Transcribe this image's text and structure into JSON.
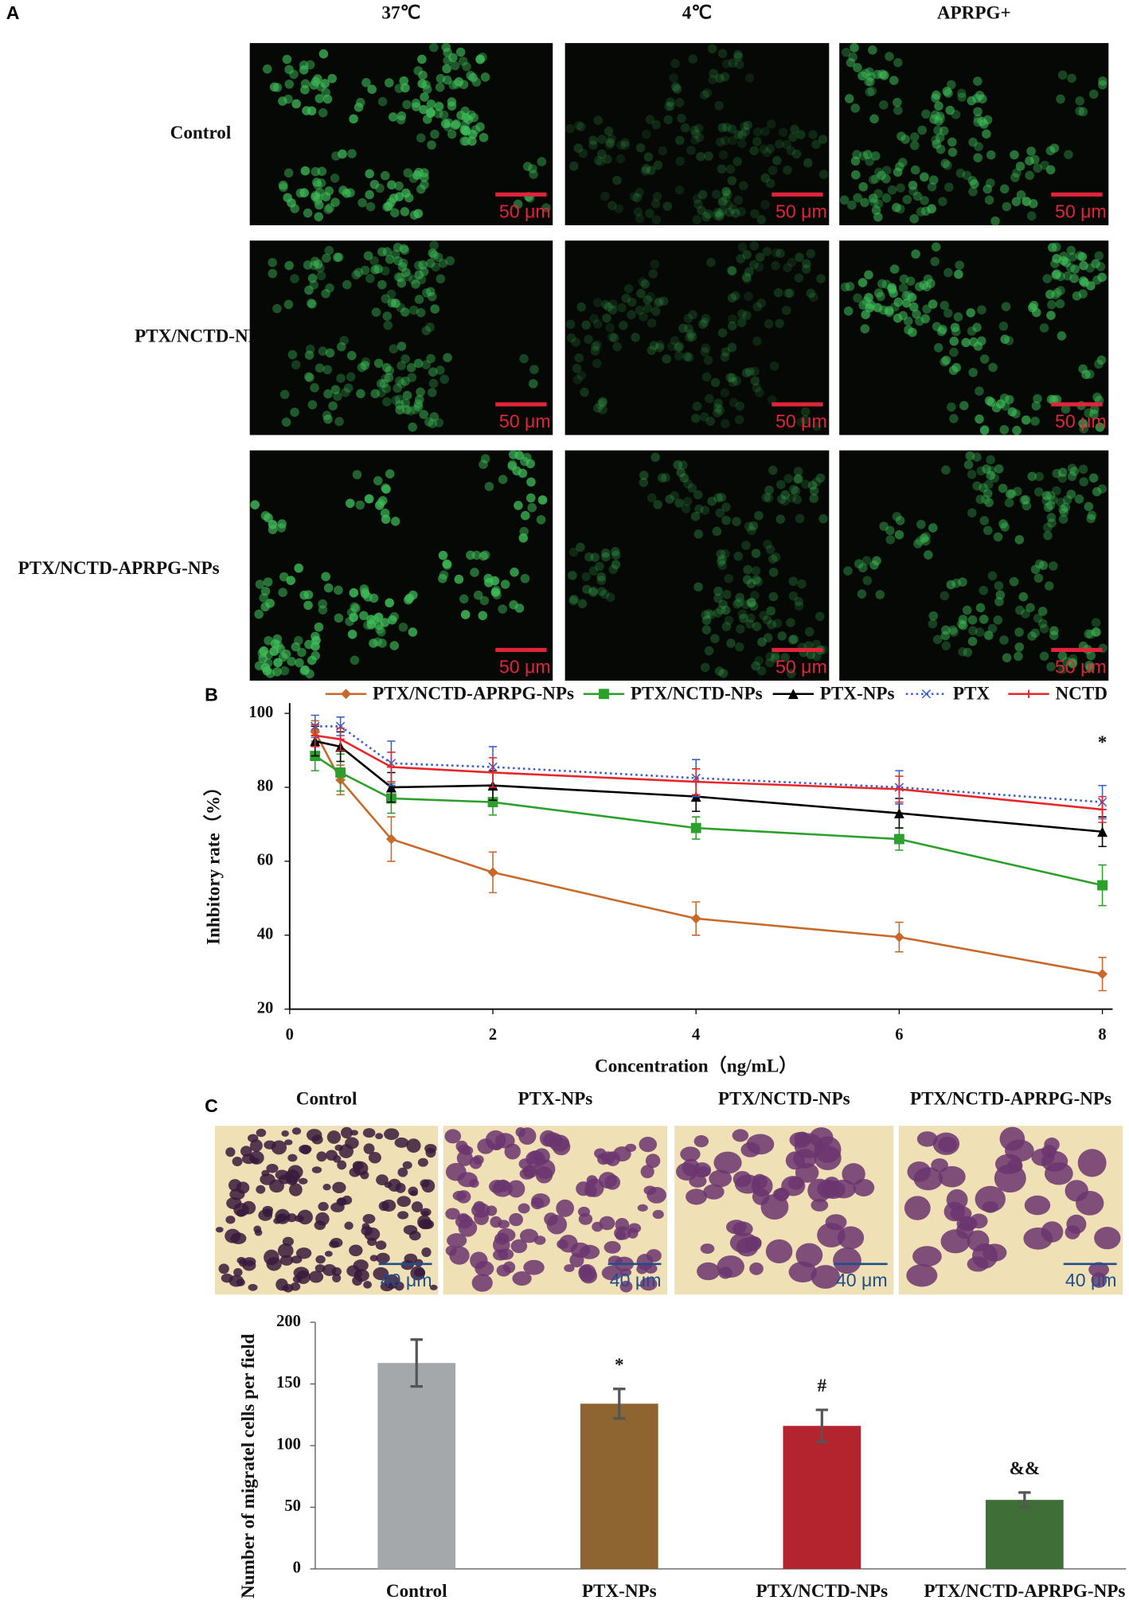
{
  "panel_a": {
    "label": "A",
    "columns": [
      "37℃",
      "4℃",
      "APRPG+"
    ],
    "rows": [
      "Control",
      "PTX/NCTD-NPs",
      "PTX/NCTD-APRPG-NPs"
    ],
    "scale_bar": "50 μm"
  },
  "panel_b": {
    "label": "B"
  },
  "panel_c": {
    "label": "C",
    "columns": [
      "Control",
      "PTX-NPs",
      "PTX/NCTD-NPs",
      "PTX/NCTD-APRPG-NPs"
    ],
    "scale_bar": "40 μm"
  },
  "chart_data": [
    {
      "type": "line",
      "y_label": "Inhbitory rate（%）",
      "x_label": "Concentration（ng/mL）",
      "x": [
        0.25,
        0.5,
        1,
        2,
        4,
        6,
        8
      ],
      "xlim": [
        0,
        8
      ],
      "xticks": [
        0,
        2,
        4,
        6,
        8
      ],
      "ylim": [
        20,
        100
      ],
      "yticks": [
        20,
        40,
        60,
        80,
        100
      ],
      "annotation": "*",
      "series": [
        {
          "name": "PTX/NCTD-APRPG-NPs",
          "color": "#c8692a",
          "marker": "diamond",
          "style": "solid",
          "values": [
            95,
            82,
            66,
            57,
            44.5,
            39.5,
            29.5
          ],
          "errors": [
            3,
            4,
            6,
            5.5,
            4.5,
            4,
            4.5
          ]
        },
        {
          "name": "PTX/NCTD-NPs",
          "color": "#2ca02c",
          "marker": "square",
          "style": "solid",
          "values": [
            88.5,
            84,
            77,
            76,
            69,
            66,
            53.5
          ],
          "errors": [
            4,
            5,
            4,
            3.5,
            3,
            3,
            5.5
          ]
        },
        {
          "name": "PTX-NPs",
          "color": "#000000",
          "marker": "triangle",
          "style": "solid",
          "values": [
            92.5,
            91,
            80,
            80.5,
            77.5,
            73,
            68
          ],
          "errors": [
            4,
            4,
            4,
            4,
            4,
            4,
            4
          ]
        },
        {
          "name": "PTX",
          "color": "#3a5fcd",
          "marker": "x",
          "style": "dotted",
          "values": [
            96.5,
            96.5,
            86.5,
            85.5,
            82.5,
            80,
            76
          ],
          "errors": [
            3,
            2.5,
            6,
            5.5,
            5,
            4.5,
            4.5
          ]
        },
        {
          "name": "NCTD",
          "color": "#e8262a",
          "marker": "plus",
          "style": "solid",
          "values": [
            94,
            93,
            85.5,
            84,
            81.5,
            79.5,
            74
          ],
          "errors": [
            3,
            3,
            4,
            4,
            3.5,
            3.5,
            3.5
          ]
        }
      ]
    },
    {
      "type": "bar",
      "y_label": "Number of migratel cells per field",
      "categories": [
        "Control",
        "PTX-NPs",
        "PTX/NCTD-NPs",
        "PTX/NCTD-APRPG-NPs"
      ],
      "values": [
        167,
        134,
        116,
        56
      ],
      "errors": [
        19,
        12,
        13,
        6
      ],
      "colors": [
        "#a5a8ab",
        "#8e6431",
        "#b3242f",
        "#3f6e37"
      ],
      "annotations": [
        null,
        "*",
        "#",
        "&&"
      ],
      "ylim": [
        0,
        200
      ],
      "yticks": [
        0,
        50,
        100,
        150,
        200
      ]
    }
  ]
}
